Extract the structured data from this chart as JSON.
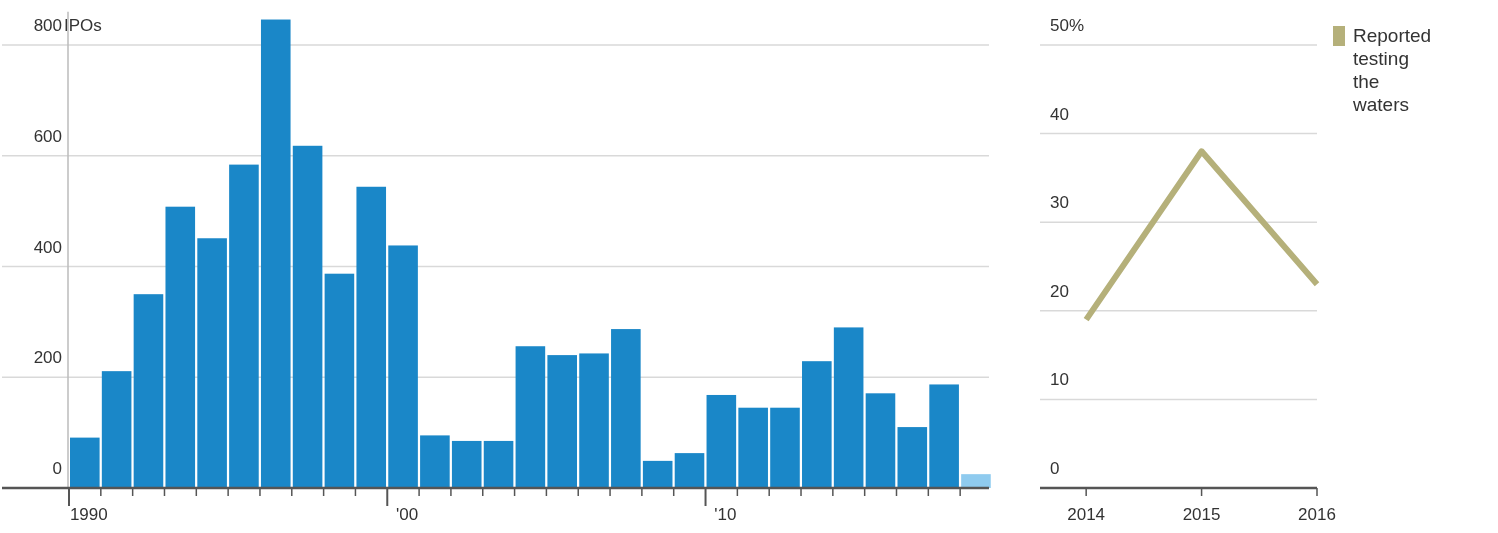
{
  "chart_data": [
    {
      "type": "bar",
      "ylabel": "IPOs",
      "categories": [
        "1990",
        null,
        null,
        null,
        null,
        null,
        null,
        null,
        null,
        null,
        "'00",
        null,
        null,
        null,
        null,
        null,
        null,
        null,
        null,
        null,
        "'10",
        null,
        null,
        null,
        null,
        null,
        null,
        null,
        null
      ],
      "values": [
        91,
        211,
        350,
        508,
        451,
        584,
        846,
        618,
        387,
        544,
        438,
        95,
        85,
        85,
        256,
        240,
        243,
        287,
        49,
        63,
        168,
        145,
        145,
        229,
        290,
        171,
        110,
        187,
        25
      ],
      "colors": [
        "#1a87c8",
        "#1a87c8",
        "#1a87c8",
        "#1a87c8",
        "#1a87c8",
        "#1a87c8",
        "#1a87c8",
        "#1a87c8",
        "#1a87c8",
        "#1a87c8",
        "#1a87c8",
        "#1a87c8",
        "#1a87c8",
        "#1a87c8",
        "#1a87c8",
        "#1a87c8",
        "#1a87c8",
        "#1a87c8",
        "#1a87c8",
        "#1a87c8",
        "#1a87c8",
        "#1a87c8",
        "#1a87c8",
        "#1a87c8",
        "#1a87c8",
        "#1a87c8",
        "#1a87c8",
        "#1a87c8",
        "#8fcbef"
      ],
      "ylim": [
        0,
        860
      ],
      "yticks": [
        0,
        200,
        400,
        600,
        800
      ],
      "grid": "y"
    },
    {
      "type": "line",
      "x": [
        2014,
        2015,
        2016
      ],
      "xlim": [
        2013.6,
        2016
      ],
      "xticks": [
        2014,
        2015,
        2016
      ],
      "series": [
        {
          "name": "Reported testing the waters",
          "color": "#b5b07a",
          "values": [
            19,
            38,
            23
          ]
        }
      ],
      "ylim": [
        0,
        50
      ],
      "yticks": [
        {
          "value": 0,
          "label": "0"
        },
        {
          "value": 10,
          "label": "10"
        },
        {
          "value": 20,
          "label": "20"
        },
        {
          "value": 30,
          "label": "30"
        },
        {
          "value": 40,
          "label": "40"
        },
        {
          "value": 50,
          "label": "50%"
        }
      ],
      "grid": "y",
      "legend": "top right",
      "marker": "none"
    }
  ]
}
